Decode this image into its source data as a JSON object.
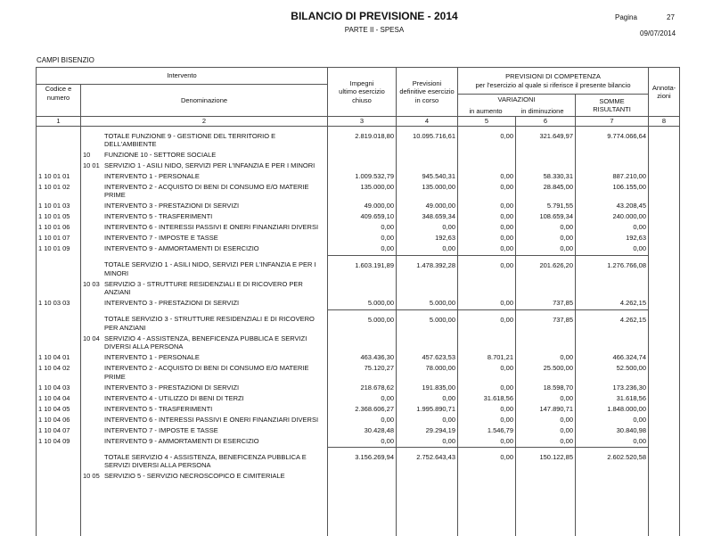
{
  "header": {
    "title": "BILANCIO DI PREVISIONE - 2014",
    "subtitle": "PARTE II - SPESA",
    "page_label": "Pagina",
    "page_number": "27",
    "date": "09/07/2014",
    "entity": "CAMPI BISENZIO"
  },
  "table": {
    "columns": {
      "intervento": "Intervento",
      "code": [
        "Codice e",
        "numero"
      ],
      "denomination": "Denominazione",
      "impegni": [
        "Impegni",
        "ultimo esercizio",
        "chiuso"
      ],
      "previsioni": [
        "Previsioni",
        "definitive esercizio",
        "in corso"
      ],
      "competenza": [
        "PREVISIONI DI COMPETENZA",
        "per l'esercizio al quale si riferisce il presente bilancio"
      ],
      "variazioni": "VARIAZIONI",
      "in_aumento": "in aumento",
      "in_diminuzione": "in diminuzione",
      "somme": [
        "SOMME",
        "RISULTANTI"
      ],
      "annotazioni": [
        "Annota-",
        "zioni"
      ]
    },
    "column_numbers": [
      "1",
      "2",
      "3",
      "4",
      "5",
      "6",
      "7",
      "8"
    ],
    "rows": [
      {
        "text": [
          "TOTALE FUNZIONE 9 - GESTIONE DEL TERRITORIO E",
          "DELL'AMBIENTE"
        ],
        "amounts": [
          "2.819.018,80",
          "10.095.716,61",
          "0,00",
          "321.649,97",
          "9.774.066,64"
        ]
      },
      {
        "section": "10",
        "text": [
          "FUNZIONE 10 - SETTORE SOCIALE"
        ]
      },
      {
        "section": "10 01",
        "text": [
          "SERVIZIO 1 - ASILI NIDO, SERVIZI PER L'INFANZIA E PER I MINORI"
        ]
      },
      {
        "code": "1 10 01 01",
        "text": [
          "INTERVENTO 1 - PERSONALE"
        ],
        "amounts": [
          "1.009.532,79",
          "945.540,31",
          "0,00",
          "58.330,31",
          "887.210,00"
        ]
      },
      {
        "code": "1 10 01 02",
        "text": [
          "INTERVENTO 2 - ACQUISTO DI BENI DI CONSUMO E/O MATERIE",
          "PRIME"
        ],
        "amounts": [
          "135.000,00",
          "135.000,00",
          "0,00",
          "28.845,00",
          "106.155,00"
        ]
      },
      {
        "code": "1 10 01 03",
        "text": [
          "INTERVENTO 3 - PRESTAZIONI DI SERVIZI"
        ],
        "amounts": [
          "49.000,00",
          "49.000,00",
          "0,00",
          "5.791,55",
          "43.208,45"
        ]
      },
      {
        "code": "1 10 01 05",
        "text": [
          "INTERVENTO 5 - TRASFERIMENTI"
        ],
        "amounts": [
          "409.659,10",
          "348.659,34",
          "0,00",
          "108.659,34",
          "240.000,00"
        ]
      },
      {
        "code": "1 10 01 06",
        "text": [
          "INTERVENTO 6 - INTERESSI PASSIVI E ONERI FINANZIARI DIVERSI"
        ],
        "amounts": [
          "0,00",
          "0,00",
          "0,00",
          "0,00",
          "0,00"
        ]
      },
      {
        "code": "1 10 01 07",
        "text": [
          "INTERVENTO 7 - IMPOSTE E TASSE"
        ],
        "amounts": [
          "0,00",
          "192,63",
          "0,00",
          "0,00",
          "192,63"
        ]
      },
      {
        "code": "1 10 01 09",
        "text": [
          "INTERVENTO 9 - AMMORTAMENTI DI ESERCIZIO"
        ],
        "amounts": [
          "0,00",
          "0,00",
          "0,00",
          "0,00",
          "0,00"
        ]
      },
      {
        "text": [
          "TOTALE SERVIZIO 1 - ASILI NIDO, SERVIZI PER L'INFANZIA E PER I",
          "MINORI"
        ],
        "amounts": [
          "1.603.191,89",
          "1.478.392,28",
          "0,00",
          "201.626,20",
          "1.276.766,08"
        ]
      },
      {
        "section": "10 03",
        "text": [
          "SERVIZIO 3 - STRUTTURE RESIDENZIALI E DI RICOVERO PER",
          "ANZIANI"
        ]
      },
      {
        "code": "1 10 03 03",
        "text": [
          "INTERVENTO 3 - PRESTAZIONI DI SERVIZI"
        ],
        "amounts": [
          "5.000,00",
          "5.000,00",
          "0,00",
          "737,85",
          "4.262,15"
        ]
      },
      {
        "text": [
          "TOTALE SERVIZIO 3 - STRUTTURE RESIDENZIALI E DI RICOVERO",
          "PER ANZIANI"
        ],
        "amounts": [
          "5.000,00",
          "5.000,00",
          "0,00",
          "737,85",
          "4.262,15"
        ]
      },
      {
        "section": "10 04",
        "text": [
          "SERVIZIO 4 - ASSISTENZA, BENEFICENZA PUBBLICA E SERVIZI",
          "DIVERSI ALLA PERSONA"
        ]
      },
      {
        "code": "1 10 04 01",
        "text": [
          "INTERVENTO 1 - PERSONALE"
        ],
        "amounts": [
          "463.436,30",
          "457.623,53",
          "8.701,21",
          "0,00",
          "466.324,74"
        ]
      },
      {
        "code": "1 10 04 02",
        "text": [
          "INTERVENTO 2 - ACQUISTO DI BENI DI CONSUMO E/O MATERIE",
          "PRIME"
        ],
        "amounts": [
          "75.120,27",
          "78.000,00",
          "0,00",
          "25.500,00",
          "52.500,00"
        ]
      },
      {
        "code": "1 10 04 03",
        "text": [
          "INTERVENTO 3 - PRESTAZIONI DI SERVIZI"
        ],
        "amounts": [
          "218.678,62",
          "191.835,00",
          "0,00",
          "18.598,70",
          "173.236,30"
        ]
      },
      {
        "code": "1 10 04 04",
        "text": [
          "INTERVENTO 4 - UTILIZZO DI BENI DI TERZI"
        ],
        "amounts": [
          "0,00",
          "0,00",
          "31.618,56",
          "0,00",
          "31.618,56"
        ]
      },
      {
        "code": "1 10 04 05",
        "text": [
          "INTERVENTO 5 - TRASFERIMENTI"
        ],
        "amounts": [
          "2.368.606,27",
          "1.995.890,71",
          "0,00",
          "147.890,71",
          "1.848.000,00"
        ]
      },
      {
        "code": "1 10 04 06",
        "text": [
          "INTERVENTO 6 - INTERESSI PASSIVI E ONERI FINANZIARI DIVERSI"
        ],
        "amounts": [
          "0,00",
          "0,00",
          "0,00",
          "0,00",
          "0,00"
        ]
      },
      {
        "code": "1 10 04 07",
        "text": [
          "INTERVENTO 7 - IMPOSTE E TASSE"
        ],
        "amounts": [
          "30.428,48",
          "29.294,19",
          "1.546,79",
          "0,00",
          "30.840,98"
        ]
      },
      {
        "code": "1 10 04 09",
        "text": [
          "INTERVENTO 9 - AMMORTAMENTI DI ESERCIZIO"
        ],
        "amounts": [
          "0,00",
          "0,00",
          "0,00",
          "0,00",
          "0,00"
        ]
      },
      {
        "text": [
          "TOTALE SERVIZIO 4 - ASSISTENZA, BENEFICENZA PUBBLICA E",
          "SERVIZI DIVERSI ALLA PERSONA"
        ],
        "amounts": [
          "3.156.269,94",
          "2.752.643,43",
          "0,00",
          "150.122,85",
          "2.602.520,58"
        ]
      },
      {
        "section": "10 05",
        "text": [
          "SERVIZIO 5 - SERVIZIO NECROSCOPICO E CIMITERIALE"
        ]
      }
    ]
  }
}
